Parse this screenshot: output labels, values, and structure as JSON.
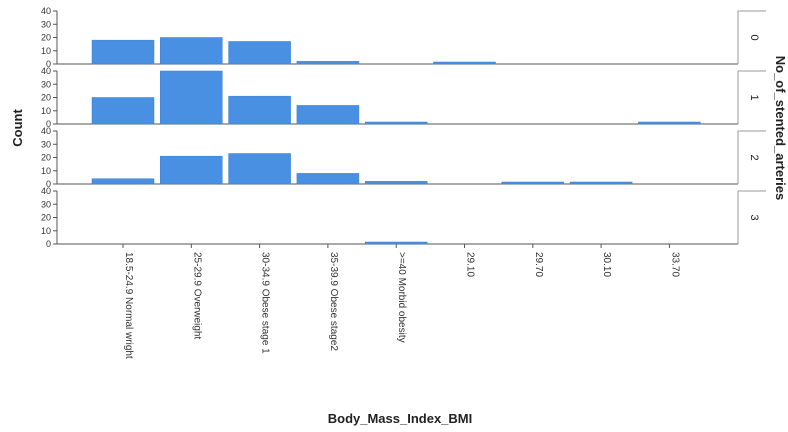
{
  "chart_data": {
    "type": "bar",
    "layout": "faceted-rows",
    "xlabel": "Body_Mass_Index_BMI",
    "ylabel": "Count",
    "facet_label": "No_of_stented_arteries",
    "ylim": [
      0,
      40
    ],
    "yticks": [
      0,
      10,
      20,
      30,
      40
    ],
    "categories": [
      "18.5-24.9 Normal wright",
      "25-29.9 Overweight",
      "30-34.9 Obese stage 1",
      "35-39.9 Obese stage2",
      ">=40 Morbid obesity",
      "29.10",
      "29.70",
      "30.10",
      "33.70"
    ],
    "bar_color": "#4a90e2",
    "series": [
      {
        "name": "0",
        "values": [
          18,
          20,
          17,
          2,
          0,
          1,
          0,
          0,
          0
        ]
      },
      {
        "name": "1",
        "values": [
          20,
          40,
          21,
          14,
          1,
          0,
          0,
          0,
          1
        ]
      },
      {
        "name": "2",
        "values": [
          4,
          21,
          23,
          8,
          2,
          0,
          1,
          1,
          0
        ]
      },
      {
        "name": "3",
        "values": [
          0,
          0,
          0,
          0,
          1,
          0,
          0,
          0,
          0
        ]
      }
    ],
    "grid": false
  }
}
